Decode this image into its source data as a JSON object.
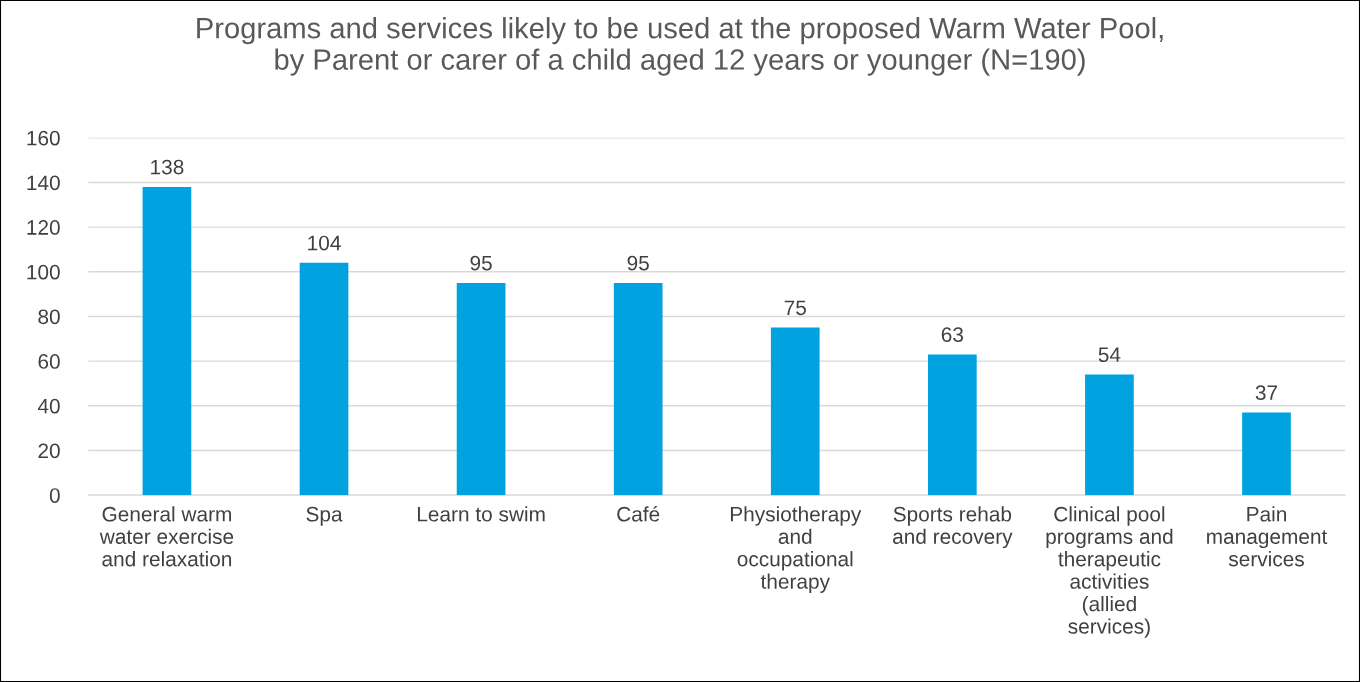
{
  "chart_data": {
    "type": "bar",
    "title": "Programs and services likely to be used at the proposed Warm Water Pool,\nby Parent or carer of a child aged 12 years or younger (N=190)",
    "categories": [
      "General warm\nwater exercise\nand relaxation",
      "Spa",
      "Learn to swim",
      "Café",
      "Physiotherapy\nand\noccupational\ntherapy",
      "Sports rehab\nand recovery",
      "Clinical pool\nprograms and\ntherapeutic\nactivities\n(allied\nservices)",
      "Pain\nmanagement\nservices"
    ],
    "values": [
      138,
      104,
      95,
      95,
      75,
      63,
      54,
      37
    ],
    "color": "#00a2e0",
    "ylim": [
      0,
      160
    ],
    "yticks": [
      0,
      20,
      40,
      60,
      80,
      100,
      120,
      140,
      160
    ],
    "grid": "y",
    "data_labels": true
  }
}
